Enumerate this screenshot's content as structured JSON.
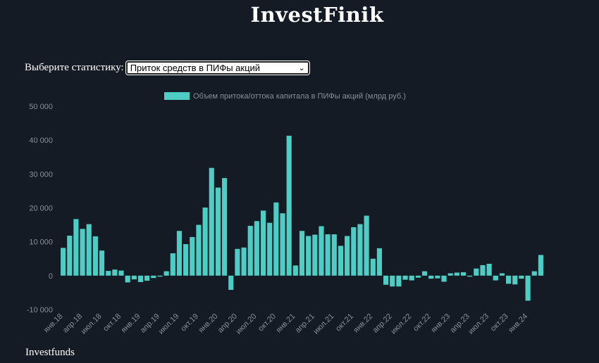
{
  "app": {
    "title": "InvestFinik",
    "footer": "Investfunds"
  },
  "selector": {
    "label": "Выберите статистику:",
    "value": "Приток средств в ПИФы акций"
  },
  "chart_data": {
    "type": "bar",
    "legend": "Объем притока/оттока капитала в ПИФы акций (млрд руб.)",
    "legend_position": "top",
    "color": "#4ecdc4",
    "grid": false,
    "ylim": [
      -10000,
      50000
    ],
    "yticks": [
      "-10 000",
      "0",
      "10 000",
      "20 000",
      "30 000",
      "40 000",
      "50 000"
    ],
    "ytick_values": [
      -10000,
      0,
      10000,
      20000,
      30000,
      40000,
      50000
    ],
    "x_tick_labels": [
      {
        "index": 0,
        "label": "янв.18"
      },
      {
        "index": 3,
        "label": "апр.18"
      },
      {
        "index": 6,
        "label": "июл.18"
      },
      {
        "index": 9,
        "label": "окт.18"
      },
      {
        "index": 12,
        "label": "янв.19"
      },
      {
        "index": 15,
        "label": "апр.19"
      },
      {
        "index": 18,
        "label": "июл.19"
      },
      {
        "index": 21,
        "label": "окт.19"
      },
      {
        "index": 24,
        "label": "янв.20"
      },
      {
        "index": 27,
        "label": "апр.20"
      },
      {
        "index": 30,
        "label": "июл.20"
      },
      {
        "index": 33,
        "label": "окт.20"
      },
      {
        "index": 36,
        "label": "янв.21"
      },
      {
        "index": 39,
        "label": "апр.21"
      },
      {
        "index": 42,
        "label": "июл.21"
      },
      {
        "index": 45,
        "label": "окт.21"
      },
      {
        "index": 48,
        "label": "янв.22"
      },
      {
        "index": 51,
        "label": "апр.22"
      },
      {
        "index": 54,
        "label": "июл.22"
      },
      {
        "index": 57,
        "label": "окт.22"
      },
      {
        "index": 60,
        "label": "янв.23"
      },
      {
        "index": 63,
        "label": "апр.23"
      },
      {
        "index": 66,
        "label": "июл.23"
      },
      {
        "index": 69,
        "label": "окт.23"
      },
      {
        "index": 72,
        "label": "янв.24"
      }
    ],
    "values": [
      8200,
      11800,
      16700,
      13800,
      15200,
      11600,
      7400,
      1400,
      1800,
      1500,
      -2000,
      -1100,
      -1900,
      -1500,
      -700,
      -300,
      1300,
      6600,
      13200,
      9300,
      11400,
      15000,
      20100,
      31800,
      26000,
      28800,
      -4200,
      7900,
      8300,
      14700,
      16100,
      19200,
      15600,
      21600,
      18400,
      41300,
      3000,
      13200,
      11700,
      12100,
      14600,
      12200,
      12200,
      8800,
      11700,
      14300,
      15200,
      17700,
      5000,
      8100,
      -2700,
      -3200,
      -3200,
      -1200,
      -1400,
      -600,
      1300,
      -900,
      -800,
      -1800,
      700,
      900,
      1000,
      -300,
      2100,
      3100,
      3500,
      -1400,
      700,
      -2400,
      -2600,
      -900,
      -7400,
      1300,
      6100
    ]
  }
}
